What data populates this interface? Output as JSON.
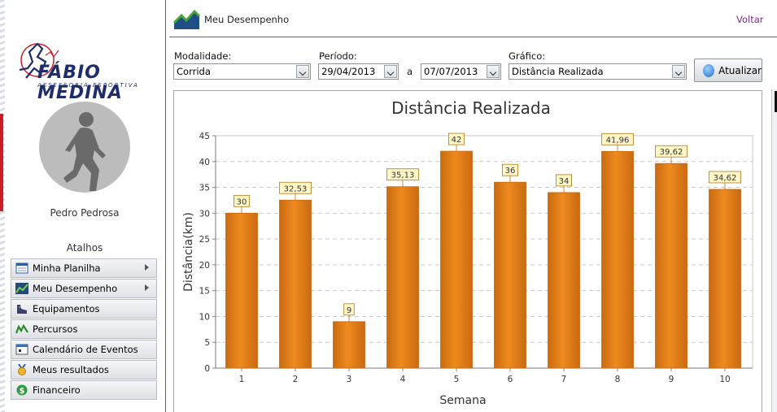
{
  "header": {
    "title": "Meu Desempenho",
    "back_link": "Voltar"
  },
  "brand": {
    "name": "FÁBIO MEDINA",
    "tagline": "ASSESSORIA ESPORTIVA"
  },
  "user": {
    "name": "Pedro Pedrosa"
  },
  "shortcuts": {
    "title": "Atalhos",
    "items": [
      {
        "label": "Minha Planilha",
        "icon": "calendar-sheet-icon",
        "has_submenu": true
      },
      {
        "label": "Meu Desempenho",
        "icon": "performance-chart-icon",
        "has_submenu": true
      },
      {
        "label": "Equipamentos",
        "icon": "shoe-icon",
        "has_submenu": false
      },
      {
        "label": "Percursos",
        "icon": "route-icon",
        "has_submenu": false
      },
      {
        "label": "Calendário de Eventos",
        "icon": "calendar-icon",
        "has_submenu": false
      },
      {
        "label": "Meus resultados",
        "icon": "medal-icon",
        "has_submenu": false
      },
      {
        "label": "Financeiro",
        "icon": "dollar-icon",
        "has_submenu": false
      }
    ]
  },
  "filters": {
    "modalidade": {
      "label": "Modalidade:",
      "value": "Corrida"
    },
    "periodo": {
      "label": "Período:",
      "start": "29/04/2013",
      "separator": "a",
      "end": "07/07/2013"
    },
    "grafico": {
      "label": "Gráfico:",
      "value": "Distância Realizada"
    },
    "refresh_button": "Atualizar"
  },
  "colors": {
    "accent_red": "#c8383c",
    "bar_fill": "#ee8a1f",
    "bar_dark": "#c96a0f",
    "label_box": "#fff6c8",
    "link_purple": "#7a2a8c"
  },
  "chart_data": {
    "type": "bar",
    "title": "Distância Realizada",
    "xlabel": "Semana",
    "ylabel": "Distância(km)",
    "categories": [
      "1",
      "2",
      "3",
      "4",
      "5",
      "6",
      "7",
      "8",
      "9",
      "10"
    ],
    "values": [
      30,
      32.53,
      9,
      35.13,
      42,
      36,
      34,
      41.96,
      39.62,
      34.62
    ],
    "value_labels": [
      "30",
      "32,53",
      "9",
      "35,13",
      "42",
      "36",
      "34",
      "41,96",
      "39,62",
      "34,62"
    ],
    "ylim": [
      0,
      45
    ],
    "yticks": [
      0,
      5,
      10,
      15,
      20,
      25,
      30,
      35,
      40,
      45
    ],
    "grid": true,
    "legend": "none"
  }
}
